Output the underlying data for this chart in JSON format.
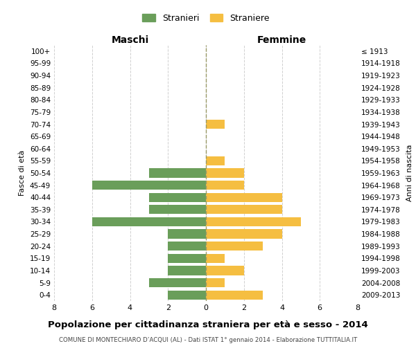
{
  "age_groups": [
    "100+",
    "95-99",
    "90-94",
    "85-89",
    "80-84",
    "75-79",
    "70-74",
    "65-69",
    "60-64",
    "55-59",
    "50-54",
    "45-49",
    "40-44",
    "35-39",
    "30-34",
    "25-29",
    "20-24",
    "15-19",
    "10-14",
    "5-9",
    "0-4"
  ],
  "birth_years": [
    "≤ 1913",
    "1914-1918",
    "1919-1923",
    "1924-1928",
    "1929-1933",
    "1934-1938",
    "1939-1943",
    "1944-1948",
    "1949-1953",
    "1954-1958",
    "1959-1963",
    "1964-1968",
    "1969-1973",
    "1974-1978",
    "1979-1983",
    "1984-1988",
    "1989-1993",
    "1994-1998",
    "1999-2003",
    "2004-2008",
    "2009-2013"
  ],
  "males": [
    0,
    0,
    0,
    0,
    0,
    0,
    0,
    0,
    0,
    0,
    3,
    6,
    3,
    3,
    6,
    2,
    2,
    2,
    2,
    3,
    2
  ],
  "females": [
    0,
    0,
    0,
    0,
    0,
    0,
    1,
    0,
    0,
    1,
    2,
    2,
    4,
    4,
    5,
    4,
    3,
    1,
    2,
    1,
    3
  ],
  "male_color": "#6a9e5a",
  "female_color": "#f5be41",
  "title": "Popolazione per cittadinanza straniera per età e sesso - 2014",
  "subtitle": "COMUNE DI MONTECHIARO D’ACQUI (AL) - Dati ISTAT 1° gennaio 2014 - Elaborazione TUTTITALIA.IT",
  "xlabel_left": "Maschi",
  "xlabel_right": "Femmine",
  "ylabel_left": "Fasce di età",
  "ylabel_right": "Anni di nascita",
  "legend_male": "Stranieri",
  "legend_female": "Straniere",
  "xlim": 8,
  "background_color": "#ffffff",
  "grid_color": "#d0d0d0",
  "bar_height": 0.75
}
